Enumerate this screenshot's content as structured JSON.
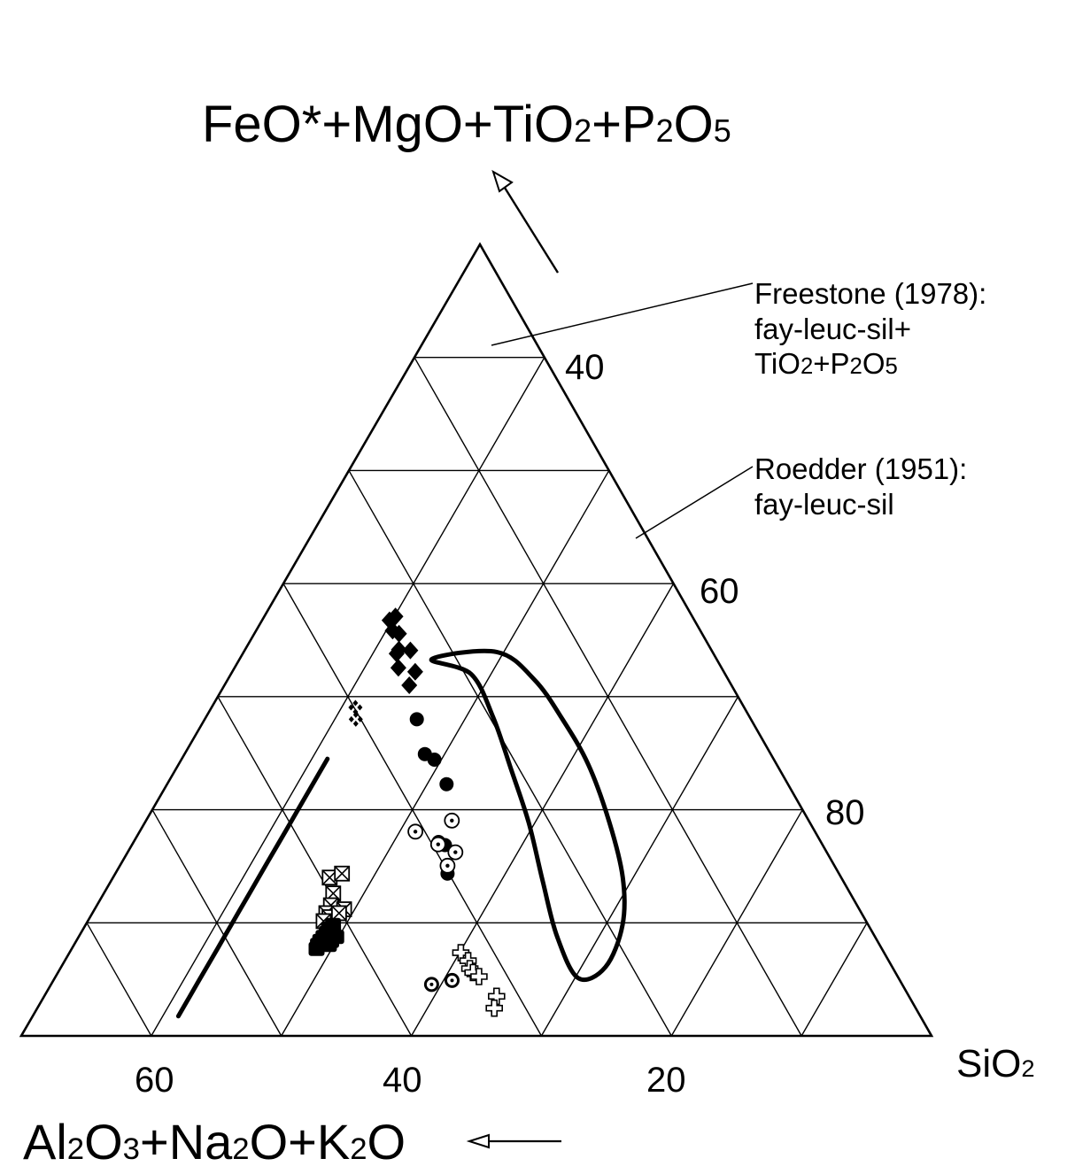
{
  "chart_data": {
    "type": "scatter",
    "subtype": "ternary",
    "axes": {
      "top": {
        "label": "FeO*+MgO+TiO2+P2O5",
        "ticks": [
          "40",
          "60",
          "80"
        ]
      },
      "left": {
        "label": "Al2O3+Na2O+K2O",
        "ticks": [
          "60",
          "40",
          "20"
        ]
      },
      "right": {
        "label": "SiO2"
      }
    },
    "grid": true,
    "ranges": {
      "top": [
        0,
        100
      ],
      "left": [
        0,
        100
      ],
      "right": [
        0,
        100
      ]
    },
    "annotations": [
      {
        "id": "freestone",
        "lines": [
          "Freestone (1978):",
          "fay-leuc-sil+",
          "TiO2+P2O5"
        ]
      },
      {
        "id": "roedder",
        "lines": [
          "Roedder (1951):",
          "fay-leuc-sil"
        ]
      }
    ],
    "curves": [
      {
        "id": "freestone-curve",
        "points": [
          [
            35,
            49,
            16
          ],
          [
            33,
            51,
            16
          ],
          [
            30,
            54,
            16
          ],
          [
            26,
            58,
            16
          ],
          [
            22,
            62,
            16
          ],
          [
            18,
            66,
            16
          ],
          [
            14.5,
            69.5,
            16
          ],
          [
            11,
            73,
            16
          ],
          [
            7,
            77,
            16
          ],
          [
            4.5,
            79.5,
            16
          ],
          [
            2.5,
            81.5,
            16
          ]
        ]
      },
      {
        "id": "roedder-field",
        "closed": true,
        "points": [
          [
            47.6,
            31.3,
            21.1
          ],
          [
            45.7,
            27.9,
            26.4
          ],
          [
            40.2,
            28.2,
            31.6
          ],
          [
            33.6,
            29.5,
            36.9
          ],
          [
            26.9,
            30.9,
            42.2
          ],
          [
            19.6,
            33.0,
            47.4
          ],
          [
            12.6,
            34.9,
            52.5
          ],
          [
            7.3,
            35.2,
            57.5
          ],
          [
            8.7,
            31.5,
            59.8
          ],
          [
            14.0,
            27.0,
            59.0
          ],
          [
            20.0,
            24.0,
            56.0
          ],
          [
            27.0,
            22.0,
            51.0
          ],
          [
            34.3,
            20.7,
            45.0
          ],
          [
            40.0,
            20.7,
            39.3
          ],
          [
            45.0,
            21.3,
            33.7
          ],
          [
            48.5,
            23.7,
            27.8
          ]
        ]
      }
    ],
    "series": [
      {
        "marker": "diamond-filled",
        "points": [
          [
            52.5,
            33.5,
            14.0
          ],
          [
            53.0,
            32.6,
            14.4
          ],
          [
            51.2,
            33.8,
            15.0
          ],
          [
            50.8,
            33.3,
            15.9
          ],
          [
            48.8,
            34.3,
            16.9
          ],
          [
            48.7,
            33.1,
            18.2
          ],
          [
            48.3,
            34.8,
            16.9
          ],
          [
            46.5,
            35.5,
            18.0
          ],
          [
            46.0,
            33.9,
            20.1
          ],
          [
            44.3,
            35.4,
            20.3
          ]
        ]
      },
      {
        "marker": "cross-cluster",
        "points": [
          [
            41.5,
            42.7,
            15.8
          ],
          [
            40.0,
            43.4,
            16.6
          ]
        ]
      },
      {
        "marker": "circle-filled",
        "points": [
          [
            40.0,
            36.7,
            23.3
          ],
          [
            35.6,
            38.0,
            26.4
          ],
          [
            34.9,
            37.3,
            27.8
          ],
          [
            31.8,
            37.5,
            30.7
          ],
          [
            24.5,
            42.0,
            33.5
          ],
          [
            24.1,
            41.5,
            34.4
          ],
          [
            20.5,
            43.0,
            36.5
          ]
        ]
      },
      {
        "marker": "circle-dot",
        "points": [
          [
            25.8,
            43.9,
            30.3
          ],
          [
            27.2,
            39.2,
            33.6
          ],
          [
            24.2,
            42.2,
            33.6
          ],
          [
            23.2,
            40.8,
            36.0
          ],
          [
            21.5,
            42.5,
            36.0
          ]
        ]
      },
      {
        "marker": "boxed-x",
        "points": [
          [
            20.0,
            56.2,
            23.8
          ],
          [
            20.5,
            54.6,
            24.9
          ],
          [
            18.0,
            56.8,
            25.2
          ],
          [
            16.5,
            57.8,
            25.7
          ],
          [
            15.5,
            58.8,
            25.7
          ],
          [
            15.0,
            58.7,
            26.3
          ],
          [
            14.5,
            59.6,
            25.9
          ],
          [
            16.0,
            56.6,
            27.4
          ],
          [
            15.5,
            57.4,
            27.1
          ]
        ]
      },
      {
        "marker": "square-filled",
        "points": [
          [
            14.0,
            58.8,
            27.2
          ],
          [
            13.5,
            59.5,
            27.0
          ],
          [
            13.0,
            60.0,
            27.0
          ],
          [
            12.5,
            60.6,
            26.9
          ],
          [
            12.0,
            61.2,
            26.8
          ],
          [
            11.5,
            61.7,
            26.8
          ],
          [
            11.0,
            62.1,
            26.9
          ],
          [
            13.0,
            59.3,
            27.7
          ],
          [
            12.0,
            60.0,
            28.0
          ],
          [
            11.5,
            60.5,
            28.0
          ],
          [
            12.5,
            59.2,
            28.3
          ]
        ]
      },
      {
        "marker": "plus-open",
        "points": [
          [
            10.5,
            46.5,
            43.0
          ],
          [
            9.5,
            46.2,
            44.3
          ],
          [
            8.5,
            46.5,
            45.0
          ],
          [
            8.0,
            46.4,
            45.6
          ],
          [
            7.5,
            46.0,
            46.5
          ],
          [
            5.0,
            45.3,
            49.7
          ],
          [
            3.5,
            46.3,
            50.2
          ]
        ]
      },
      {
        "marker": "dot-cluster",
        "points": [
          [
            6.5,
            51.7,
            41.8
          ],
          [
            7.0,
            49.2,
            43.8
          ]
        ]
      }
    ]
  }
}
